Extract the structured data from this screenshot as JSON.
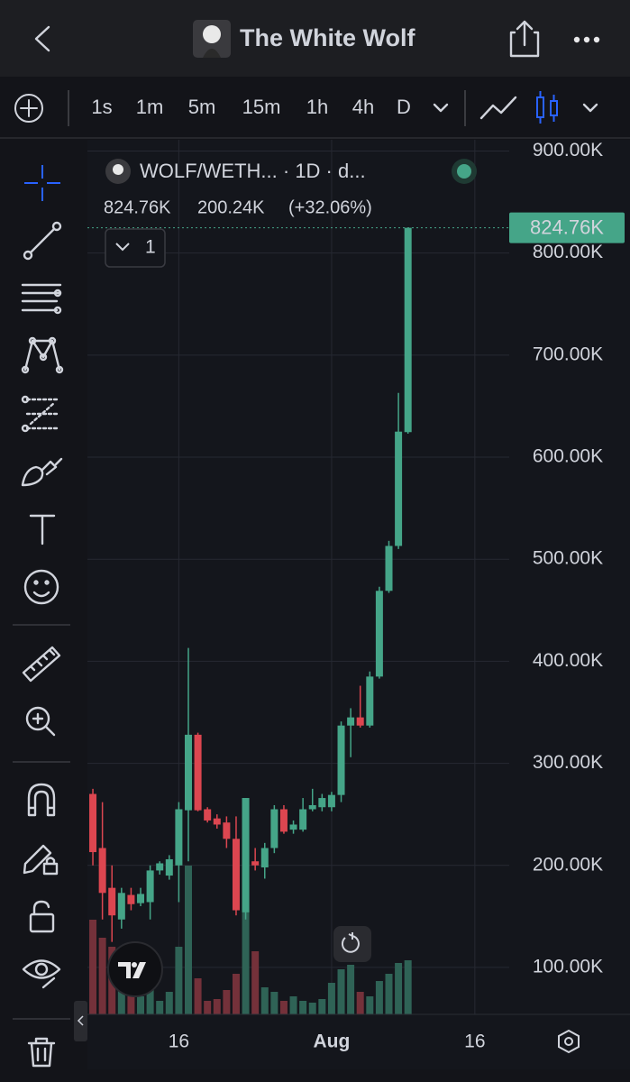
{
  "header": {
    "title": "The White Wolf"
  },
  "timeframes": [
    "1s",
    "1m",
    "5m",
    "15m",
    "1h",
    "4h",
    "D"
  ],
  "active_timeframe": 6,
  "legend": {
    "symbol": "WOLF/WETH... · 1D · d...",
    "close": "824.76K",
    "change": "200.24K",
    "change_pct": "(+32.06%)",
    "indicator_count": "1"
  },
  "chart_data": {
    "type": "candlestick",
    "x": [
      0,
      1,
      2,
      3,
      4,
      5,
      6,
      7,
      8,
      9,
      10,
      11,
      12,
      13,
      14,
      15,
      16,
      17,
      18,
      19,
      20,
      21,
      22,
      23,
      24,
      25,
      26,
      27,
      28,
      29,
      30,
      31,
      32,
      33
    ],
    "open": [
      270,
      217,
      178,
      147,
      171,
      163,
      164,
      195,
      190,
      200,
      254,
      328,
      255,
      246,
      242,
      226,
      154,
      204,
      198,
      217,
      255,
      235,
      235,
      255,
      257,
      257,
      269,
      337,
      345,
      337,
      385,
      469,
      513,
      624.52
    ],
    "high": [
      275,
      262,
      200,
      178,
      178,
      178,
      200,
      204,
      210,
      262,
      413,
      330,
      257,
      250,
      248,
      248,
      266,
      217,
      222,
      259,
      259,
      244,
      266,
      275,
      270,
      272,
      341,
      354,
      376,
      390,
      473,
      518,
      663,
      824.76
    ],
    "low": [
      200,
      147,
      125,
      138,
      156,
      160,
      147,
      191,
      186,
      164,
      204,
      253,
      242,
      236,
      217,
      151,
      147,
      195,
      187,
      212,
      231,
      231,
      233,
      253,
      253,
      253,
      262,
      306,
      335,
      335,
      383,
      467,
      510,
      623
    ],
    "close": [
      213,
      173,
      151,
      173,
      162,
      172,
      195,
      202,
      206,
      255,
      328,
      254,
      244,
      240,
      226,
      156,
      266,
      200,
      217,
      255,
      233,
      240,
      255,
      259,
      266,
      269,
      337,
      345,
      337,
      385,
      469,
      513,
      625,
      824.76
    ],
    "volume": [
      105,
      85,
      75,
      50,
      20,
      20,
      30,
      15,
      25,
      75,
      165,
      40,
      15,
      17,
      27,
      45,
      240,
      70,
      30,
      25,
      15,
      20,
      15,
      13,
      17,
      35,
      50,
      55,
      25,
      20,
      37,
      45,
      57,
      60
    ],
    "up_color": "#45a588",
    "down_color": "#dc4650",
    "volume_up_color": "#2f6356",
    "volume_down_color": "#74313a",
    "xlim": [
      -0.57,
      43.6
    ],
    "xticks": [
      {
        "value": 9,
        "label": "16"
      },
      {
        "value": 25,
        "label": "Aug"
      },
      {
        "value": 40,
        "label": "16"
      }
    ],
    "ylim": [
      54,
      911
    ],
    "yticks": [
      {
        "value": 100,
        "label": "100.00K"
      },
      {
        "value": 200,
        "label": "200.00K"
      },
      {
        "value": 300,
        "label": "300.00K"
      },
      {
        "value": 400,
        "label": "400.00K"
      },
      {
        "value": 500,
        "label": "500.00K"
      },
      {
        "value": 600,
        "label": "600.00K"
      },
      {
        "value": 700,
        "label": "700.00K"
      },
      {
        "value": 800,
        "label": "800.00K"
      },
      {
        "value": 900,
        "label": "900.00K"
      }
    ],
    "last_value": {
      "value": 824.76,
      "label": "824.76K"
    },
    "grid": true
  }
}
